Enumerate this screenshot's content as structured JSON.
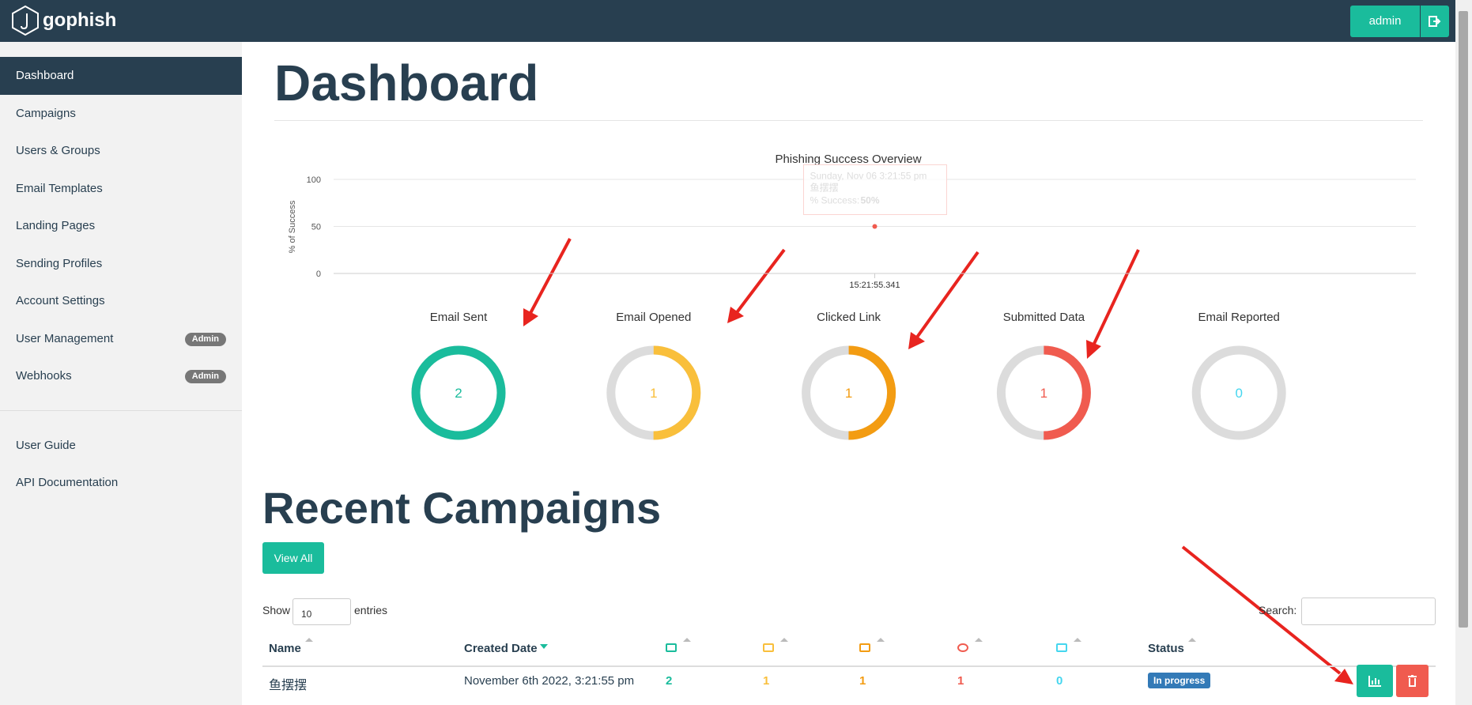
{
  "navbar": {
    "brand": "gophish",
    "user": "admin"
  },
  "sidebar": {
    "items": [
      {
        "label": "Dashboard"
      },
      {
        "label": "Campaigns"
      },
      {
        "label": "Users & Groups"
      },
      {
        "label": "Email Templates"
      },
      {
        "label": "Landing Pages"
      },
      {
        "label": "Sending Profiles"
      },
      {
        "label": "Account Settings"
      },
      {
        "label": "User Management",
        "badge": "Admin"
      },
      {
        "label": "Webhooks",
        "badge": "Admin"
      }
    ],
    "links": [
      "User Guide",
      "API Documentation"
    ]
  },
  "page_title": "Dashboard",
  "chart_data": {
    "type": "line",
    "title": "Phishing Success Overview",
    "y_label": "% of Success",
    "categories": [
      "15:21:55.341"
    ],
    "values": [
      50
    ],
    "color": "#f05b4f",
    "ylim": [
      0,
      100
    ],
    "yticks": [
      0,
      50,
      100
    ],
    "grid": true,
    "tooltip": {
      "date": "Sunday, Nov 06 3:21:55 pm",
      "name": "鱼摆摆",
      "label": "% Success:",
      "value": "50%"
    }
  },
  "stats": [
    {
      "label": "Email Sent",
      "value": 2,
      "color": "#1abc9c"
    },
    {
      "label": "Email Opened",
      "value": 1,
      "color": "#f9bf3b"
    },
    {
      "label": "Clicked Link",
      "value": 1,
      "color": "#f39c12"
    },
    {
      "label": "Submitted Data",
      "value": 1,
      "color": "#f05b4f"
    },
    {
      "label": "Email Reported",
      "value": 0,
      "color": "#45d6ef"
    }
  ],
  "recent": {
    "title": "Recent Campaigns",
    "view_all": "View All",
    "show": "Show",
    "page_size": "10",
    "entries": "entries",
    "search": "Search:",
    "columns": {
      "name": "Name",
      "created": "Created Date",
      "status": "Status"
    },
    "rows": [
      {
        "name": "鱼摆摆",
        "created": "November 6th 2022, 3:21:55 pm",
        "counts": [
          "2",
          "1",
          "1",
          "1",
          "0"
        ],
        "status": "In progress"
      }
    ]
  }
}
